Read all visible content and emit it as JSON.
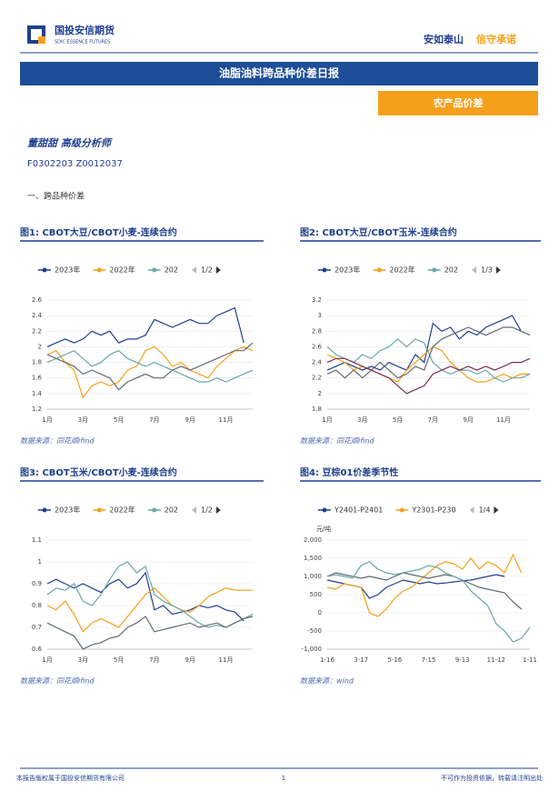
{
  "header": {
    "logo_cn": "国投安信期货",
    "logo_en": "SDIC ESSENCE FUTURES",
    "slogan_a": "安如泰山",
    "slogan_b": "信守承诺"
  },
  "report_title": "油脂油料跨品种价差日报",
  "tag": "农产品价差",
  "author": "董甜甜 高级分析师",
  "cert": "F0302203 Z0012037",
  "section": "一、跨品种价差",
  "footer": {
    "left": "本报告版权属于国投安信期货有限公司",
    "page": "1",
    "right": "不可作为投资依据，转载请注明出处"
  },
  "chart_data": [
    {
      "type": "line",
      "title": "图1: CBOT大豆/CBOT小麦-连续合约",
      "source": "数据来源：同花顺ifind",
      "legend_page": "1/2",
      "grid": true,
      "categories": [
        "1月",
        null,
        null,
        null,
        "3月",
        null,
        null,
        null,
        "5月",
        null,
        null,
        null,
        "7月",
        null,
        null,
        null,
        "9月",
        null,
        null,
        null,
        "11月",
        null,
        null,
        null
      ],
      "ylim": [
        1.2,
        2.6
      ],
      "yticks": [
        1.2,
        1.4,
        1.6,
        1.8,
        2,
        2.2,
        2.4,
        2.6
      ],
      "series": [
        {
          "name": "2023年",
          "color": "#1f3f8f",
          "values": [
            2.0,
            2.05,
            2.1,
            2.05,
            2.1,
            2.2,
            2.15,
            2.2,
            2.05,
            2.1,
            2.1,
            2.15,
            2.35,
            2.3,
            2.25,
            2.3,
            2.35,
            2.3,
            2.3,
            2.4,
            2.45,
            2.5,
            2.05,
            null
          ]
        },
        {
          "name": "2022年",
          "color": "#f5a01a",
          "values": [
            1.9,
            1.95,
            1.8,
            1.7,
            1.35,
            1.5,
            1.55,
            1.5,
            1.55,
            1.7,
            1.75,
            1.95,
            2.0,
            1.9,
            1.75,
            1.8,
            1.7,
            1.65,
            1.6,
            1.75,
            1.85,
            1.95,
            2.0,
            1.95
          ]
        },
        {
          "name": "202",
          "color": "#6aa6a8",
          "values": [
            1.8,
            1.85,
            1.9,
            1.95,
            1.85,
            1.75,
            1.8,
            1.9,
            1.95,
            1.85,
            1.8,
            1.75,
            1.8,
            1.75,
            1.7,
            1.65,
            1.6,
            1.55,
            1.55,
            1.6,
            1.55,
            1.6,
            1.65,
            1.7
          ]
        },
        {
          "color": "#5f6b73",
          "values": [
            1.9,
            1.85,
            1.8,
            1.75,
            1.65,
            1.7,
            1.65,
            1.6,
            1.45,
            1.55,
            1.6,
            1.65,
            1.6,
            1.6,
            1.7,
            1.75,
            1.7,
            1.75,
            1.8,
            1.85,
            1.9,
            1.95,
            1.95,
            2.05
          ]
        }
      ]
    },
    {
      "type": "line",
      "title": "图2: CBOT大豆/CBOT玉米-连续合约",
      "source": "数据来源：同花顺ifind",
      "legend_page": "1/3",
      "grid": true,
      "categories": [
        "1月",
        null,
        null,
        null,
        "3月",
        null,
        null,
        null,
        "5月",
        null,
        null,
        null,
        "7月",
        null,
        null,
        null,
        "9月",
        null,
        null,
        null,
        "11月",
        null,
        null,
        null
      ],
      "ylim": [
        1.8,
        3.2
      ],
      "yticks": [
        1.8,
        2,
        2.2,
        2.4,
        2.6,
        2.8,
        3,
        3.2
      ],
      "series": [
        {
          "name": "2023年",
          "color": "#1f3f8f",
          "values": [
            2.3,
            2.35,
            2.4,
            2.35,
            2.3,
            2.35,
            2.3,
            2.4,
            2.35,
            2.3,
            2.5,
            2.4,
            2.9,
            2.8,
            2.85,
            2.7,
            2.8,
            2.75,
            2.85,
            2.9,
            2.95,
            3.0,
            2.8,
            null
          ]
        },
        {
          "name": "2022年",
          "color": "#f5a01a",
          "values": [
            2.5,
            2.45,
            2.4,
            2.3,
            2.35,
            2.3,
            2.25,
            2.2,
            2.15,
            2.3,
            2.4,
            2.5,
            2.6,
            2.55,
            2.4,
            2.3,
            2.2,
            2.15,
            2.15,
            2.2,
            2.25,
            2.2,
            2.25,
            2.25
          ]
        },
        {
          "name": "202",
          "color": "#6aa6a8",
          "values": [
            2.6,
            2.5,
            2.45,
            2.4,
            2.5,
            2.45,
            2.55,
            2.6,
            2.7,
            2.6,
            2.7,
            2.65,
            2.4,
            2.3,
            2.25,
            2.3,
            2.3,
            2.25,
            2.3,
            2.2,
            2.15,
            2.2,
            2.2,
            2.25
          ]
        },
        {
          "color": "#5f6b73",
          "values": [
            2.25,
            2.3,
            2.2,
            2.3,
            2.2,
            2.3,
            2.4,
            2.3,
            2.2,
            2.25,
            2.35,
            2.3,
            2.6,
            2.7,
            2.75,
            2.8,
            2.85,
            2.8,
            2.75,
            2.8,
            2.85,
            2.85,
            2.8,
            2.75
          ]
        },
        {
          "color": "#7b2d5a",
          "values": [
            2.4,
            2.45,
            2.45,
            2.4,
            2.35,
            2.3,
            2.25,
            2.2,
            2.1,
            2.0,
            2.05,
            2.1,
            2.25,
            2.3,
            2.35,
            2.3,
            2.35,
            2.3,
            2.35,
            2.3,
            2.35,
            2.4,
            2.4,
            2.45
          ]
        }
      ]
    },
    {
      "type": "line",
      "title": "图3: CBOT玉米/CBOT小麦-连续合约",
      "source": "数据来源：同花顺ifind",
      "legend_page": "1/2",
      "grid": true,
      "categories": [
        "1月",
        null,
        null,
        null,
        "3月",
        null,
        null,
        null,
        "5月",
        null,
        null,
        null,
        "7月",
        null,
        null,
        null,
        "9月",
        null,
        null,
        null,
        "11月",
        null,
        null,
        null
      ],
      "ylim": [
        0.6,
        1.1
      ],
      "yticks": [
        0.6,
        0.7,
        0.8,
        0.9,
        1,
        1.1
      ],
      "series": [
        {
          "name": "2023年",
          "color": "#1f3f8f",
          "values": [
            0.9,
            0.92,
            0.9,
            0.88,
            0.9,
            0.88,
            0.86,
            0.9,
            0.92,
            0.88,
            0.9,
            0.95,
            0.78,
            0.8,
            0.76,
            0.77,
            0.78,
            0.8,
            0.79,
            0.8,
            0.78,
            0.77,
            0.73,
            null
          ]
        },
        {
          "name": "2022年",
          "color": "#f5a01a",
          "values": [
            0.8,
            0.78,
            0.82,
            0.76,
            0.68,
            0.72,
            0.74,
            0.72,
            0.7,
            0.75,
            0.8,
            0.85,
            0.88,
            0.84,
            0.8,
            0.78,
            0.77,
            0.8,
            0.84,
            0.86,
            0.88,
            0.87,
            0.87,
            0.87
          ]
        },
        {
          "name": "202",
          "color": "#6aa6a8",
          "values": [
            0.85,
            0.88,
            0.87,
            0.9,
            0.82,
            0.8,
            0.85,
            0.92,
            0.98,
            1.0,
            0.95,
            0.98,
            0.85,
            0.82,
            0.8,
            0.78,
            0.75,
            0.72,
            0.7,
            0.71,
            0.7,
            0.72,
            0.74,
            0.76
          ]
        },
        {
          "color": "#5f6b73",
          "values": [
            0.72,
            0.7,
            0.68,
            0.66,
            0.6,
            0.62,
            0.63,
            0.65,
            0.66,
            0.7,
            0.72,
            0.75,
            0.68,
            0.69,
            0.7,
            0.71,
            0.72,
            0.7,
            0.71,
            0.72,
            0.7,
            0.72,
            0.74,
            0.75
          ]
        }
      ]
    },
    {
      "type": "line",
      "title": "图4: 豆棕01价差季节性",
      "source": "数据来源：wind",
      "legend_page": "1/4",
      "ylabel": "元/吨",
      "grid": true,
      "categories": [
        "1-16",
        null,
        null,
        null,
        "3-17",
        null,
        null,
        null,
        "5-16",
        null,
        null,
        null,
        "7-15",
        null,
        null,
        null,
        "9-13",
        null,
        null,
        null,
        "11-12",
        null,
        null,
        null,
        "1-11"
      ],
      "ylim": [
        -1000,
        2000
      ],
      "yticks": [
        {
          "value": -1000,
          "label": "-1,000"
        },
        -500,
        0,
        500,
        {
          "value": 1000,
          "label": "1,000"
        },
        {
          "value": 1500,
          "label": "1,500"
        },
        {
          "value": 2000,
          "label": "2,000"
        }
      ],
      "series": [
        {
          "name": "Y2401-P2401",
          "color": "#1f3f8f",
          "values": [
            900,
            850,
            800,
            750,
            700,
            400,
            500,
            700,
            800,
            900,
            850,
            800,
            850,
            800,
            820,
            850,
            880,
            900,
            950,
            1000,
            1050,
            1000,
            null,
            null,
            null
          ]
        },
        {
          "name": "Y2301-P230",
          "color": "#f5a01a",
          "values": [
            700,
            650,
            800,
            750,
            700,
            0,
            -100,
            100,
            400,
            600,
            700,
            900,
            1100,
            1300,
            1400,
            1350,
            1200,
            1500,
            1200,
            1400,
            1300,
            1100,
            1600,
            1100,
            null
          ]
        },
        {
          "color": "#5f6b73",
          "values": [
            1000,
            1100,
            1050,
            1000,
            950,
            1000,
            950,
            900,
            1000,
            1100,
            1050,
            1000,
            950,
            1000,
            1050,
            1000,
            900,
            800,
            700,
            650,
            600,
            550,
            300,
            100,
            null
          ]
        },
        {
          "color": "#6aa6a8",
          "values": [
            1000,
            1050,
            1000,
            950,
            1300,
            1400,
            1200,
            1100,
            1050,
            1100,
            1150,
            1200,
            1300,
            1250,
            1100,
            1000,
            900,
            600,
            400,
            200,
            -300,
            -500,
            -800,
            -700,
            -400
          ]
        }
      ]
    }
  ]
}
